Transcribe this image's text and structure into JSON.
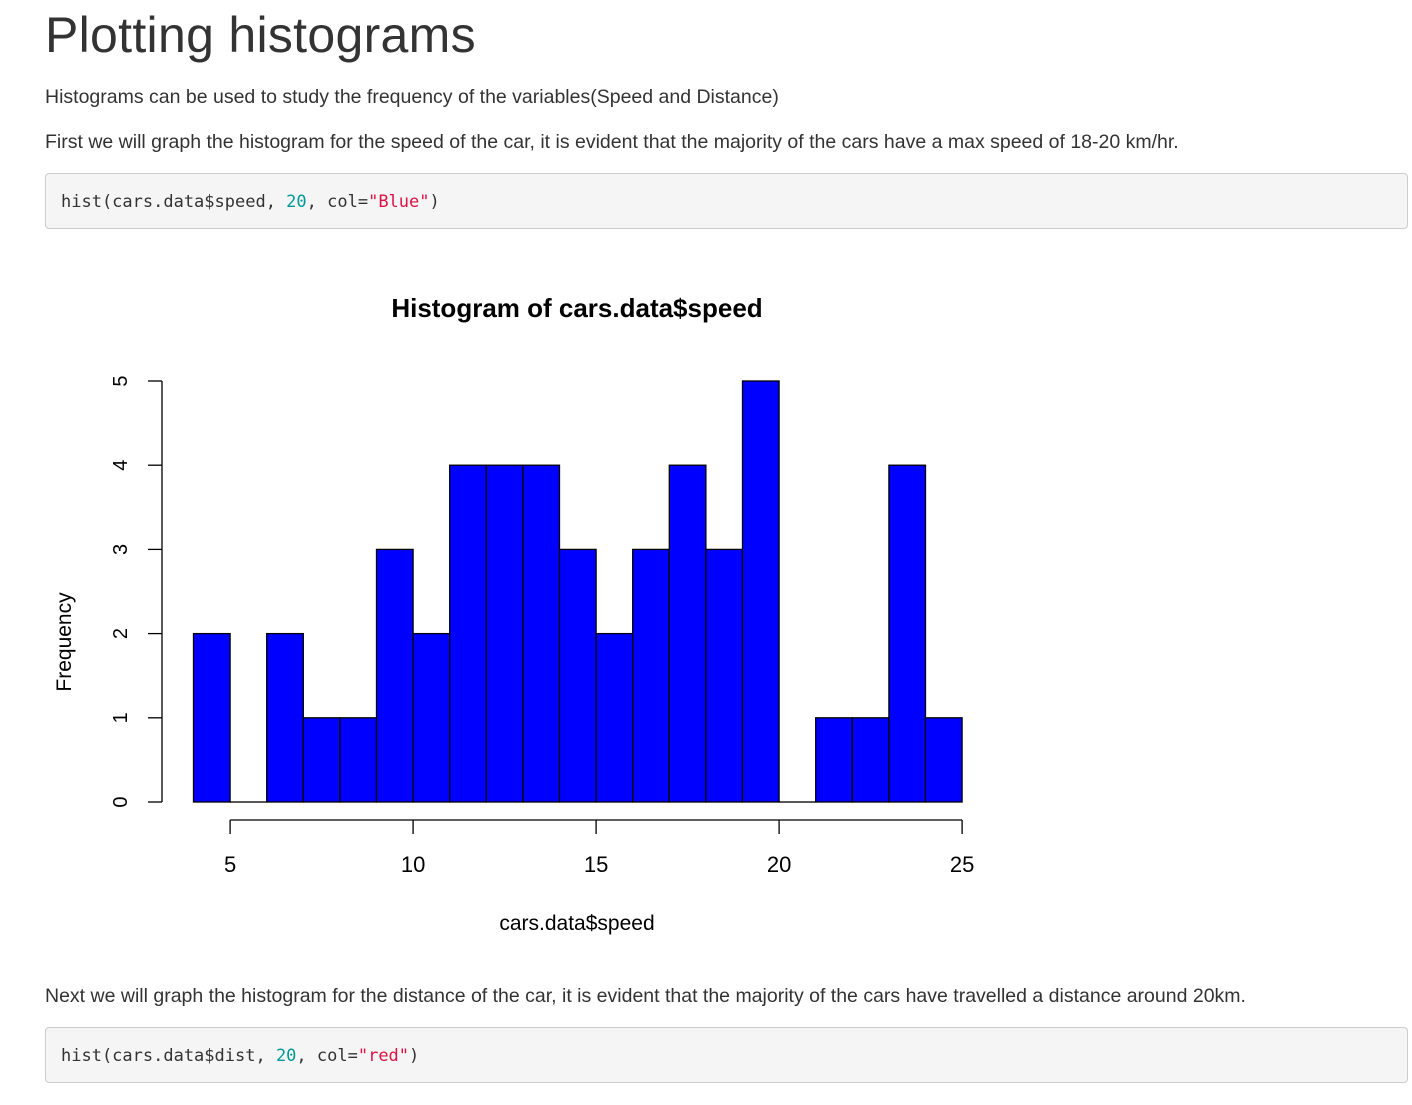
{
  "page": {
    "heading": "Plotting histograms",
    "intro": "Histograms can be used to study the frequency of the variables(Speed and Distance)",
    "speed_text": "First we will graph the histogram for the speed of the car, it is evident that the majority of the cars have a max speed of 18-20 km/hr.",
    "dist_text": "Next we will graph the histogram for the distance of the car, it is evident that the majority of the cars have travelled a distance around 20km."
  },
  "code1": {
    "fn": "hist(cars.data$speed, ",
    "num": "20",
    "mid": ", col=",
    "str": "\"Blue\"",
    "end": ")"
  },
  "code2": {
    "fn": "hist(cars.data$dist, ",
    "num": "20",
    "mid": ", col=",
    "str": "\"red\"",
    "end": ")"
  },
  "colors": {
    "bar_fill": "#0000ff",
    "bar_stroke": "#000000",
    "code_bg": "#f5f5f5",
    "code_number": "#009999",
    "code_string": "#dd1144"
  },
  "chart_data": {
    "type": "bar",
    "title": "Histogram of cars.data$speed",
    "xlabel": "cars.data$speed",
    "ylabel": "Frequency",
    "breaks": [
      4,
      5,
      6,
      7,
      8,
      9,
      10,
      11,
      12,
      13,
      14,
      15,
      16,
      17,
      18,
      19,
      20,
      21,
      22,
      23,
      24,
      25
    ],
    "values": [
      2,
      0,
      2,
      1,
      1,
      3,
      2,
      4,
      4,
      4,
      3,
      2,
      3,
      4,
      3,
      5,
      0,
      1,
      1,
      4,
      1
    ],
    "xlim": [
      4,
      25
    ],
    "ylim": [
      0,
      5
    ],
    "x_ticks": [
      5,
      10,
      15,
      20,
      25
    ],
    "y_ticks": [
      0,
      1,
      2,
      3,
      4,
      5
    ],
    "grid": false,
    "legend": "none"
  }
}
